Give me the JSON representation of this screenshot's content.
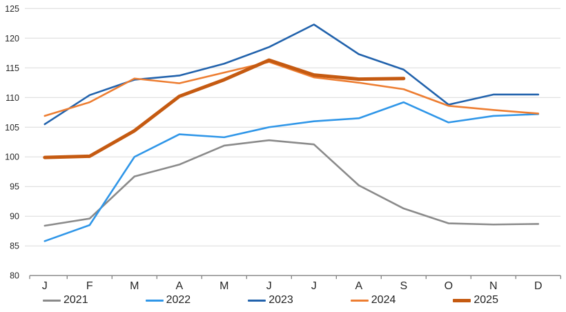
{
  "chart_data": {
    "type": "line",
    "title": "",
    "xlabel": "",
    "ylabel": "",
    "categories": [
      "J",
      "F",
      "M",
      "A",
      "M",
      "J",
      "J",
      "A",
      "S",
      "O",
      "N",
      "D"
    ],
    "y_ticks": [
      80,
      85,
      90,
      95,
      100,
      105,
      110,
      115,
      120,
      125
    ],
    "ylim": [
      80,
      125
    ],
    "grid": true,
    "legend_position": "bottom",
    "axis_color": "#808080",
    "grid_color": "#d9d9d9",
    "series": [
      {
        "name": "2021",
        "color": "#8a8a8a",
        "width": 2.6,
        "values": [
          88.4,
          89.6,
          96.7,
          98.7,
          101.9,
          102.8,
          102.1,
          95.2,
          91.3,
          88.8,
          88.6,
          88.7
        ]
      },
      {
        "name": "2022",
        "color": "#2f96e8",
        "width": 2.6,
        "values": [
          85.8,
          88.5,
          100.0,
          103.8,
          103.3,
          105.0,
          106.0,
          106.5,
          109.2,
          105.8,
          106.9,
          107.2
        ]
      },
      {
        "name": "2023",
        "color": "#2162ac",
        "width": 2.6,
        "values": [
          105.5,
          110.4,
          113.0,
          113.7,
          115.7,
          118.5,
          122.3,
          117.3,
          114.7,
          108.8,
          110.5,
          110.5
        ]
      },
      {
        "name": "2024",
        "color": "#ed7d31",
        "width": 2.6,
        "values": [
          106.9,
          109.2,
          113.2,
          112.4,
          114.2,
          116.0,
          113.4,
          112.5,
          111.4,
          108.6,
          107.9,
          107.3
        ]
      },
      {
        "name": "2025",
        "color": "#c55a11",
        "width": 5,
        "values": [
          99.9,
          100.1,
          104.4,
          110.2,
          113.0,
          116.3,
          113.8,
          113.1,
          113.2
        ]
      }
    ]
  }
}
